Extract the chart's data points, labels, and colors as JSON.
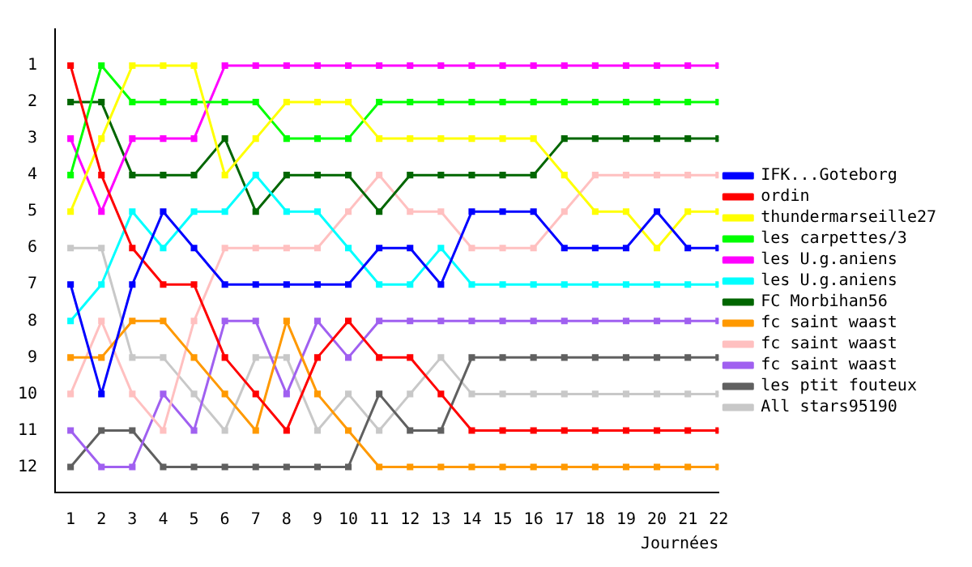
{
  "chart_data": {
    "type": "line",
    "xlabel": "Journées",
    "x": [
      1,
      2,
      3,
      4,
      5,
      6,
      7,
      8,
      9,
      10,
      11,
      12,
      13,
      14,
      15,
      16,
      17,
      18,
      19,
      20,
      21,
      22
    ],
    "xlim": [
      0.5,
      22
    ],
    "xticks": [
      1,
      2,
      3,
      4,
      5,
      6,
      7,
      8,
      9,
      10,
      11,
      12,
      13,
      14,
      15,
      16,
      17,
      18,
      19,
      20,
      21,
      22
    ],
    "ylim": [
      12.7,
      0
    ],
    "yticks": [
      1,
      2,
      3,
      4,
      5,
      6,
      7,
      8,
      9,
      10,
      11,
      12
    ],
    "grid": false,
    "legend": "right",
    "marker": "square",
    "line_style": "solid",
    "series": [
      {
        "name": "IFK...Goteborg",
        "color": "#0000ff",
        "values": [
          7,
          10,
          7,
          5,
          6,
          7,
          7,
          7,
          7,
          7,
          6,
          6,
          7,
          5,
          5,
          5,
          6,
          6,
          6,
          5,
          6,
          6
        ]
      },
      {
        "name": "ordin",
        "color": "#ff0000",
        "values": [
          1,
          4,
          6,
          7,
          7,
          9,
          10,
          11,
          9,
          8,
          9,
          9,
          10,
          11,
          11,
          11,
          11,
          11,
          11,
          11,
          11,
          11
        ]
      },
      {
        "name": "thundermarseille27",
        "color": "#ffff00",
        "values": [
          5,
          3,
          1,
          1,
          1,
          4,
          3,
          2,
          2,
          2,
          3,
          3,
          3,
          3,
          3,
          3,
          4,
          5,
          5,
          6,
          5,
          5
        ]
      },
      {
        "name": "les carpettes/3",
        "color": "#00ff00",
        "values": [
          4,
          1,
          2,
          2,
          2,
          2,
          2,
          3,
          3,
          3,
          2,
          2,
          2,
          2,
          2,
          2,
          2,
          2,
          2,
          2,
          2,
          2
        ]
      },
      {
        "name": "les U.g.aniens",
        "color": "#ff00ff",
        "values": [
          3,
          5,
          3,
          3,
          3,
          1,
          1,
          1,
          1,
          1,
          1,
          1,
          1,
          1,
          1,
          1,
          1,
          1,
          1,
          1,
          1,
          1
        ]
      },
      {
        "name": "les U.g.aniens",
        "color": "#00ffff",
        "values": [
          8,
          7,
          5,
          6,
          5,
          5,
          4,
          5,
          5,
          6,
          7,
          7,
          6,
          7,
          7,
          7,
          7,
          7,
          7,
          7,
          7,
          7
        ]
      },
      {
        "name": "FC Morbihan56",
        "color": "#006600",
        "values": [
          2,
          2,
          4,
          4,
          4,
          3,
          5,
          4,
          4,
          4,
          5,
          4,
          4,
          4,
          4,
          4,
          3,
          3,
          3,
          3,
          3,
          3
        ]
      },
      {
        "name": "fc saint waast",
        "color": "#ff9900",
        "values": [
          9,
          9,
          8,
          8,
          9,
          10,
          11,
          8,
          10,
          11,
          12,
          12,
          12,
          12,
          12,
          12,
          12,
          12,
          12,
          12,
          12,
          12
        ]
      },
      {
        "name": "fc saint waast",
        "color": "#ffc0c0",
        "values": [
          10,
          8,
          10,
          11,
          8,
          6,
          6,
          6,
          6,
          5,
          4,
          5,
          5,
          6,
          6,
          6,
          5,
          4,
          4,
          4,
          4,
          4
        ]
      },
      {
        "name": "fc saint waast",
        "color": "#a060f0",
        "values": [
          11,
          12,
          12,
          10,
          11,
          8,
          8,
          10,
          8,
          9,
          8,
          8,
          8,
          8,
          8,
          8,
          8,
          8,
          8,
          8,
          8,
          8
        ]
      },
      {
        "name": "les ptit fouteux",
        "color": "#606060",
        "values": [
          12,
          11,
          11,
          12,
          12,
          12,
          12,
          12,
          12,
          12,
          10,
          11,
          11,
          9,
          9,
          9,
          9,
          9,
          9,
          9,
          9,
          9
        ]
      },
      {
        "name": "All stars95190",
        "color": "#c8c8c8",
        "values": [
          6,
          6,
          9,
          9,
          10,
          11,
          9,
          9,
          11,
          10,
          11,
          10,
          9,
          10,
          10,
          10,
          10,
          10,
          10,
          10,
          10,
          10
        ]
      }
    ]
  }
}
